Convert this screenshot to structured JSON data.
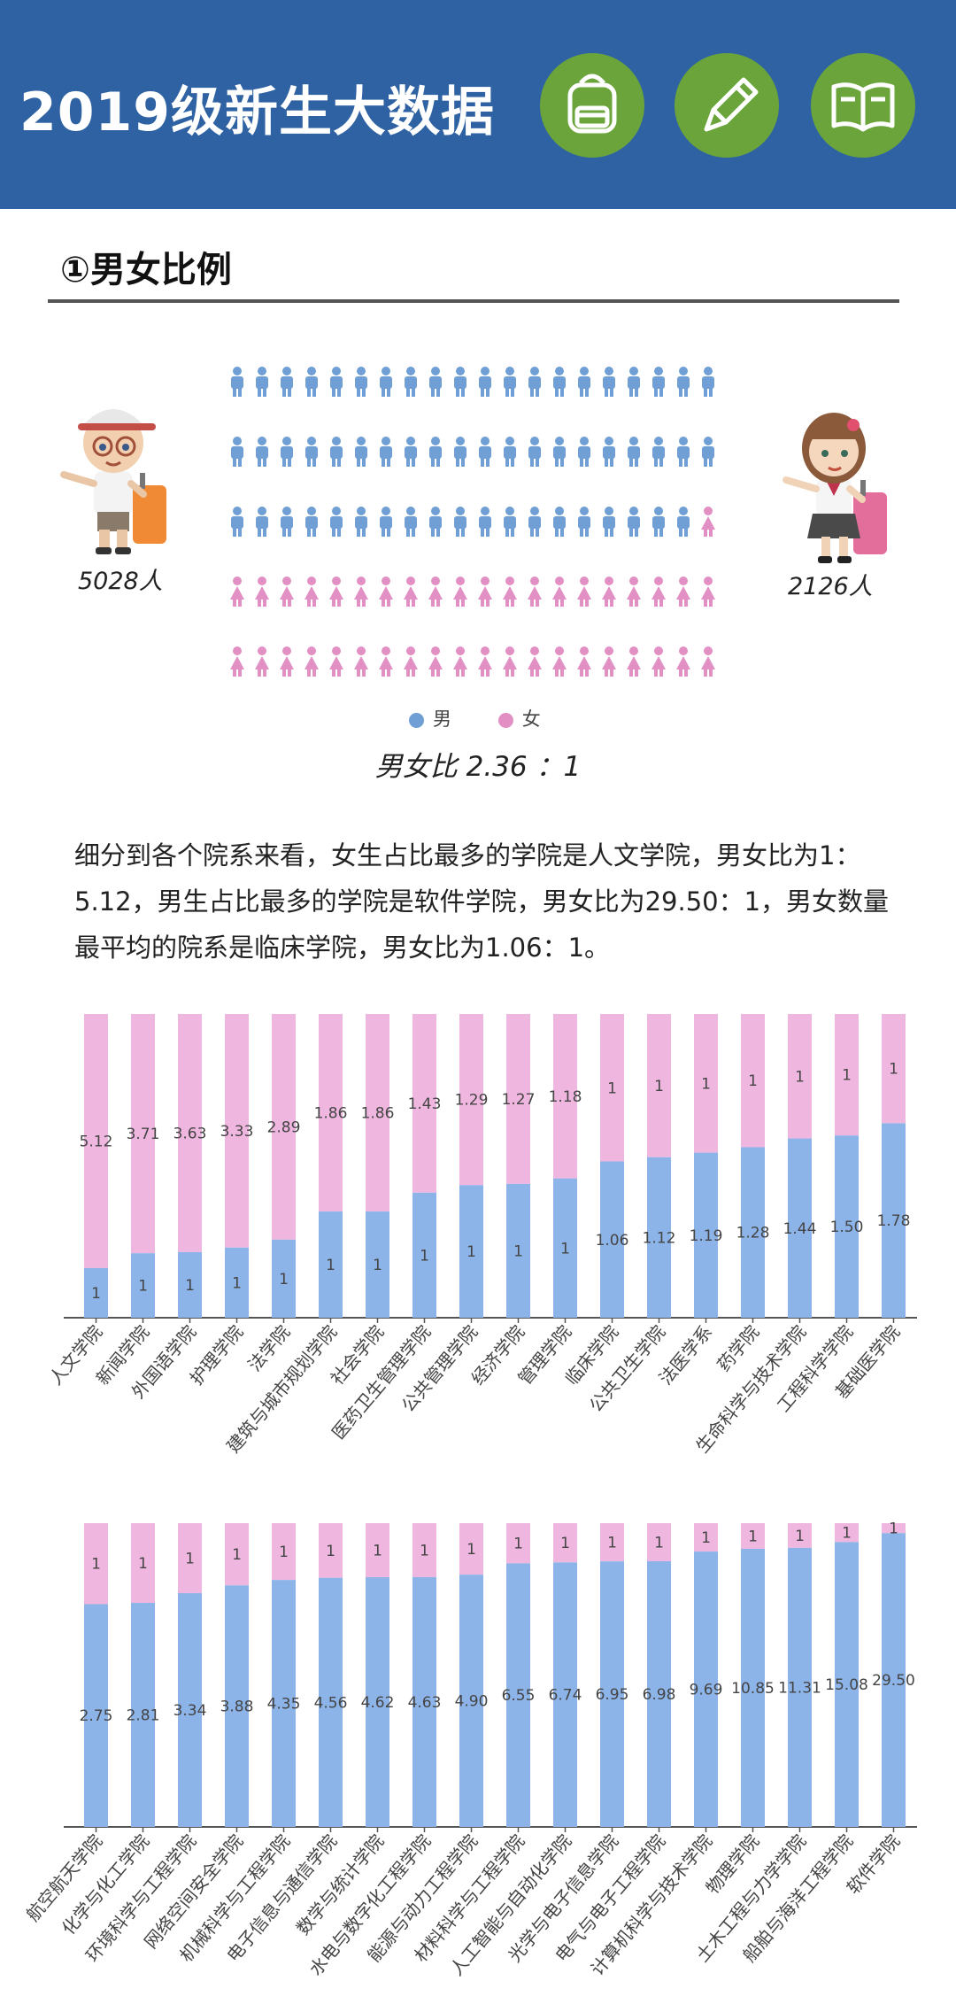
{
  "header": {
    "title": "2019级新生大数据",
    "icons": [
      "backpack-icon",
      "pencil-icon",
      "book-icon"
    ]
  },
  "section": {
    "title": "①男女比例"
  },
  "gender": {
    "male_count": "5028人",
    "female_count": "2126人",
    "male_icons": 59,
    "female_icons": 41,
    "legend_male": "男",
    "legend_female": "女",
    "ratio_text": "男女比  2.36 ：1"
  },
  "paragraph": "细分到各个院系来看，女生占比最多的学院是人文学院，男女比为1：5.12，男生占比最多的学院是软件学院，男女比为29.50：1，男女数量最平均的院系是临床学院，男女比为1.06：1。",
  "colors": {
    "header": "#2f62a3",
    "male": "#8db4e8",
    "female": "#efb7e0",
    "icon_male": "#6f9fd4",
    "icon_female": "#e290c4",
    "green": "#6aa43a"
  },
  "chart_data": [
    {
      "type": "bar",
      "stacked": "percent",
      "categories": [
        "人文学院",
        "新闻学院",
        "外国语学院",
        "护理学院",
        "法学院",
        "建筑与城市规划学院",
        "社会学院",
        "医药卫生管理学院",
        "公共管理学院",
        "经济学院",
        "管理学院",
        "临床学院",
        "公共卫生学院",
        "法医学系",
        "药学院",
        "生命科学与技术学院",
        "工程科学学院",
        "基础医学院"
      ],
      "series": [
        {
          "name": "男",
          "values": [
            "1",
            "1",
            "1",
            "1",
            "1",
            "1",
            "1",
            "1",
            "1",
            "1",
            "1",
            "1.06",
            "1.12",
            "1.19",
            "1.28",
            "1.44",
            "1.50",
            "1.78"
          ]
        },
        {
          "name": "女",
          "values": [
            "5.12",
            "3.71",
            "3.63",
            "3.33",
            "2.89",
            "1.86",
            "1.86",
            "1.43",
            "1.29",
            "1.27",
            "1.18",
            "1",
            "1",
            "1",
            "1",
            "1",
            "1",
            "1"
          ]
        }
      ]
    },
    {
      "type": "bar",
      "stacked": "percent",
      "categories": [
        "航空航天学院",
        "化学与化工学院",
        "环境科学与工程学院",
        "网络空间安全学院",
        "机械科学与工程学院",
        "电子信息与通信学院",
        "数学与统计学院",
        "水电与数字化工程学院",
        "能源与动力工程学院",
        "材料科学与工程学院",
        "人工智能与自动化学院",
        "光学与电子信息学院",
        "电气与电子工程学院",
        "计算机科学与技术学院",
        "物理学院",
        "土木工程与力学学院",
        "船舶与海洋工程学院",
        "软件学院"
      ],
      "series": [
        {
          "name": "男",
          "values": [
            "2.75",
            "2.81",
            "3.34",
            "3.88",
            "4.35",
            "4.56",
            "4.62",
            "4.63",
            "4.90",
            "6.55",
            "6.74",
            "6.95",
            "6.98",
            "9.69",
            "10.85",
            "11.31",
            "15.08",
            "29.50"
          ]
        },
        {
          "name": "女",
          "values": [
            "1",
            "1",
            "1",
            "1",
            "1",
            "1",
            "1",
            "1",
            "1",
            "1",
            "1",
            "1",
            "1",
            "1",
            "1",
            "1",
            "1",
            "1"
          ]
        }
      ]
    }
  ]
}
